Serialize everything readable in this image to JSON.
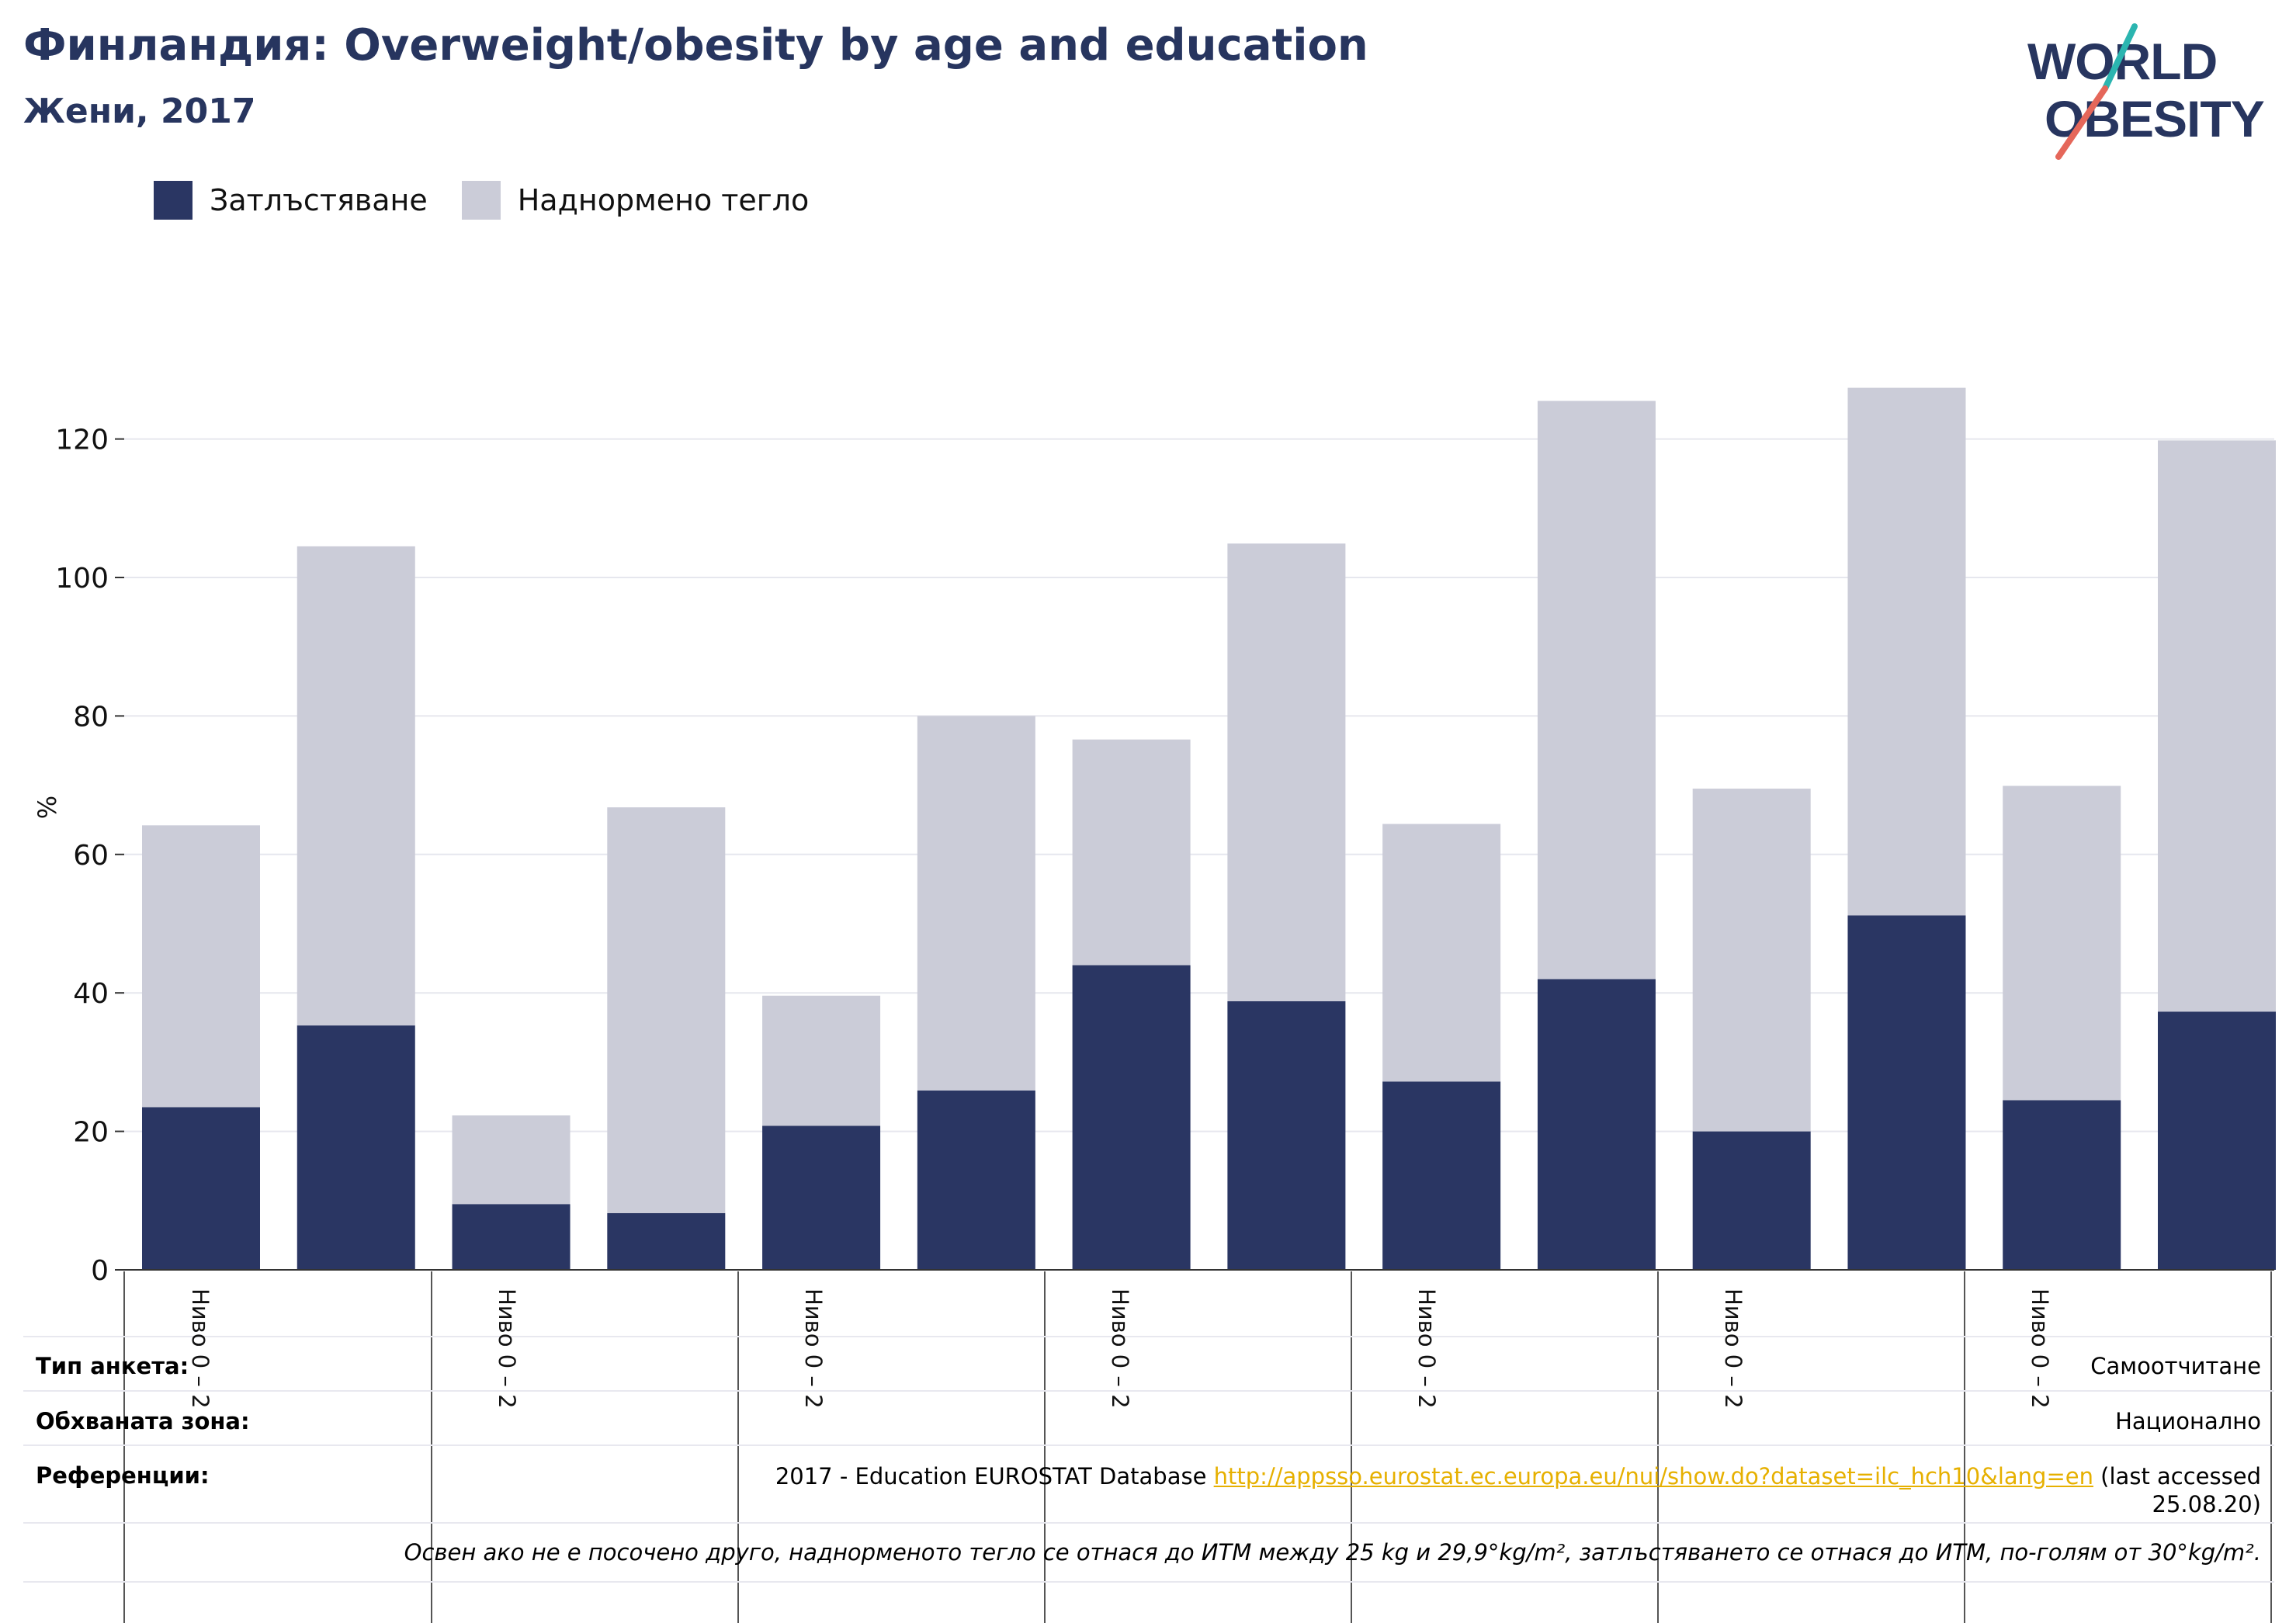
{
  "header": {
    "title": "Финландия: Overweight/obesity by age and education",
    "subtitle": "Жени, 2017"
  },
  "logo": {
    "line1": "WORLD",
    "line2": "OBESITY"
  },
  "colors": {
    "obesity": "#2a3663",
    "overweight": "#cbccd8",
    "title": "#27355f",
    "link": "#e6b000",
    "logo_teal": "#2bb5b0",
    "logo_coral": "#e5675a"
  },
  "legend": [
    {
      "label": "Затлъстяване",
      "color": "#2a3663"
    },
    {
      "label": "Наднормено тегло",
      "color": "#cbccd8"
    }
  ],
  "chart_data": {
    "type": "bar",
    "stacked": true,
    "ylabel": "%",
    "ylim": [
      0,
      127
    ],
    "yticks": [
      0,
      20,
      40,
      60,
      80,
      100,
      120
    ],
    "grid": true,
    "legend_position": "top-left",
    "group_labels": [
      "Ниво 0 – 2",
      "Ниво 0 – 2",
      "Ниво 0 – 2",
      "Ниво 0 – 2",
      "Ниво 0 – 2",
      "Ниво 0 – 2",
      "Ниво 0 – 2"
    ],
    "series": [
      {
        "name": "Затлъстяване",
        "values": [
          23.5,
          35.3,
          9.5,
          8.2,
          20.8,
          25.9,
          44.0,
          38.8,
          27.2,
          42.0,
          20.0,
          51.2,
          24.5,
          37.3
        ]
      },
      {
        "name": "Наднормено тегло",
        "values": [
          40.7,
          69.2,
          12.8,
          58.6,
          18.8,
          54.1,
          32.6,
          66.1,
          37.2,
          83.5,
          49.5,
          76.2,
          45.4,
          82.5
        ]
      }
    ]
  },
  "info": {
    "survey_type_label": "Тип анкета:",
    "survey_type_value": "Самоотчитане",
    "area_label": "Обхваната зона:",
    "area_value": "Национално",
    "references_label": "Референции:",
    "reference_prefix": "2017 - Education EUROSTAT Database ",
    "reference_link": "http://appsso.eurostat.ec.europa.eu/nui/show.do?dataset=ilc_hch10&lang=en",
    "reference_suffix": " (last accessed",
    "reference_date": "25.08.20)",
    "note": "Освен ако не е посочено друго, наднорменото тегло се отнася до ИТМ между 25 kg и 29,9°kg/m², затлъстяването се отнася до ИТМ, по-голям от 30°kg/m²."
  }
}
